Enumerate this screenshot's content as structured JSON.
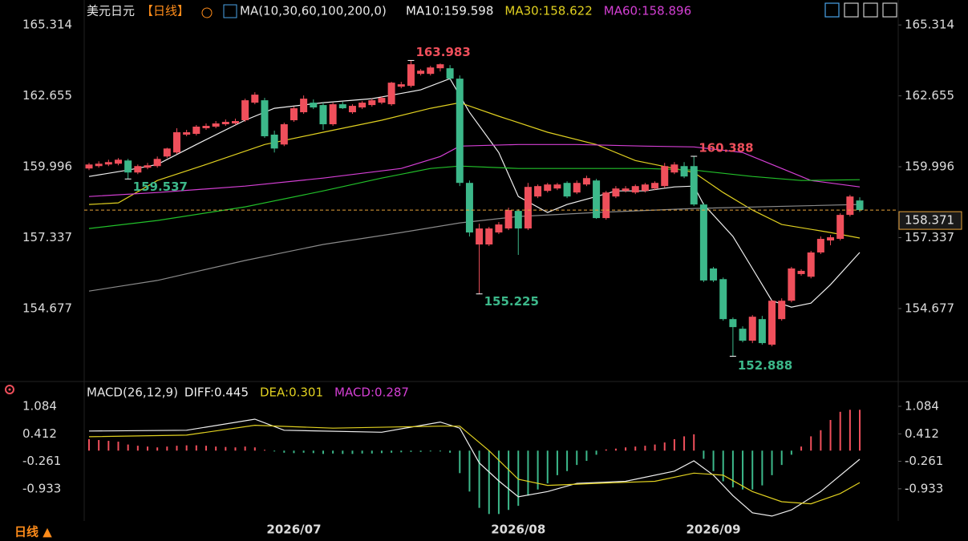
{
  "toolbar": {
    "period": "日线 ▲"
  },
  "chart_data": [
    {
      "type": "candlestick",
      "title": "美元日元",
      "subtitle": "【日线】",
      "indicator": "MA(10,30,60,100,200,0)",
      "up_color": "#ef4f5b",
      "down_color": "#3cb88a",
      "last_price_color": "#e8a33a",
      "ylim": [
        152.12,
        165.95
      ],
      "yticks": [
        165.314,
        162.655,
        159.996,
        157.337,
        154.677
      ],
      "categories": [
        null,
        null,
        null,
        null,
        null,
        null,
        null,
        null,
        null,
        null,
        null,
        null,
        null,
        null,
        null,
        null,
        null,
        null,
        null,
        null,
        null,
        "2026/07",
        null,
        null,
        null,
        null,
        null,
        null,
        null,
        null,
        null,
        null,
        null,
        null,
        null,
        null,
        null,
        null,
        null,
        null,
        null,
        null,
        null,
        null,
        "2026/08",
        null,
        null,
        null,
        null,
        null,
        null,
        null,
        null,
        null,
        null,
        null,
        null,
        null,
        null,
        null,
        null,
        null,
        null,
        null,
        "2026/09",
        null,
        null,
        null,
        null,
        null,
        null,
        null,
        null,
        null,
        null,
        null,
        null,
        null,
        null,
        null
      ],
      "open": [
        159.93,
        160.02,
        160.08,
        160.11,
        160.23,
        159.78,
        159.96,
        160.02,
        160.38,
        160.53,
        161.2,
        161.23,
        161.44,
        161.5,
        161.59,
        161.62,
        161.74,
        162.4,
        162.49,
        161.2,
        160.83,
        161.74,
        162.04,
        162.4,
        162.31,
        161.59,
        162.34,
        162.04,
        162.22,
        162.31,
        162.4,
        162.34,
        163.0,
        163.03,
        163.48,
        163.48,
        163.69,
        163.69,
        163.3,
        159.39,
        157.08,
        157.08,
        157.53,
        157.68,
        158.34,
        157.68,
        158.88,
        159.09,
        159.18,
        159.39,
        159.03,
        159.33,
        159.48,
        158.07,
        158.88,
        159.09,
        159.03,
        159.09,
        159.18,
        159.27,
        159.78,
        160.02,
        160.02,
        158.58,
        156.18,
        155.78,
        154.28,
        153.92,
        153.47,
        154.28,
        153.32,
        154.28,
        154.97,
        155.97,
        155.87,
        156.78,
        157.23,
        157.29,
        158.19,
        158.73
      ],
      "high": [
        160.14,
        160.2,
        160.26,
        160.32,
        160.29,
        160.08,
        160.14,
        160.38,
        160.71,
        161.44,
        161.38,
        161.56,
        161.62,
        161.71,
        161.77,
        161.8,
        162.55,
        162.79,
        162.58,
        161.35,
        161.65,
        162.25,
        162.67,
        162.52,
        162.4,
        162.4,
        162.43,
        162.34,
        162.46,
        162.55,
        162.64,
        163.18,
        163.18,
        163.983,
        163.66,
        163.78,
        163.87,
        163.81,
        163.42,
        159.48,
        157.86,
        157.74,
        157.92,
        158.46,
        158.4,
        159.39,
        159.33,
        159.39,
        159.39,
        159.45,
        159.48,
        159.66,
        159.54,
        159.09,
        159.27,
        159.27,
        159.33,
        159.39,
        159.45,
        160.14,
        160.17,
        160.17,
        160.388,
        158.64,
        156.24,
        155.84,
        154.34,
        154.01,
        154.43,
        154.4,
        155.0,
        155.06,
        156.24,
        156.15,
        156.84,
        157.38,
        157.44,
        158.25,
        158.94,
        158.85
      ],
      "low": [
        159.87,
        159.96,
        160.02,
        160.05,
        159.537,
        159.72,
        159.9,
        159.96,
        160.32,
        160.47,
        161.14,
        161.17,
        161.38,
        161.44,
        161.53,
        161.56,
        161.68,
        162.34,
        161.08,
        160.53,
        160.77,
        161.68,
        161.98,
        162.16,
        161.38,
        161.53,
        162.16,
        161.98,
        162.16,
        162.25,
        162.34,
        162.28,
        162.94,
        162.97,
        163.42,
        163.42,
        163.57,
        163.24,
        159.27,
        157.38,
        155.225,
        157.02,
        157.47,
        157.62,
        156.69,
        157.62,
        158.82,
        159.03,
        159.12,
        158.82,
        158.97,
        159.27,
        158.04,
        158.01,
        158.82,
        159.03,
        158.97,
        159.03,
        159.12,
        159.21,
        159.72,
        159.57,
        158.52,
        155.67,
        155.67,
        154.22,
        152.888,
        153.41,
        153.38,
        153.32,
        153.26,
        154.22,
        154.91,
        155.91,
        155.81,
        156.72,
        157.05,
        157.23,
        158.13,
        158.3
      ],
      "close": [
        160.08,
        160.11,
        160.17,
        160.26,
        159.78,
        160.02,
        160.05,
        160.29,
        160.68,
        161.29,
        161.29,
        161.5,
        161.53,
        161.62,
        161.68,
        161.71,
        162.49,
        162.7,
        161.14,
        160.68,
        161.59,
        162.19,
        162.55,
        162.22,
        161.59,
        162.34,
        162.19,
        162.28,
        162.4,
        162.49,
        162.58,
        163.15,
        163.09,
        163.84,
        163.6,
        163.72,
        163.84,
        163.3,
        159.39,
        157.53,
        157.68,
        157.68,
        157.83,
        158.37,
        157.68,
        159.24,
        159.27,
        159.33,
        159.33,
        158.88,
        159.39,
        159.57,
        158.07,
        159.03,
        159.18,
        159.18,
        159.27,
        159.33,
        159.39,
        160.02,
        160.08,
        159.63,
        158.58,
        155.73,
        155.73,
        154.28,
        153.98,
        153.47,
        154.37,
        153.38,
        154.97,
        154.97,
        156.18,
        156.09,
        156.78,
        157.29,
        157.35,
        158.19,
        158.88,
        158.371
      ],
      "series": [
        {
          "name": "MA10:159.598",
          "color": "#f0f0f0",
          "x": [
            0,
            4,
            7,
            11,
            16,
            19,
            24,
            29,
            34,
            37,
            39,
            42,
            44,
            47,
            49,
            52,
            54,
            57,
            60,
            62,
            63,
            66,
            68,
            70,
            72,
            74,
            76,
            79
          ],
          "values": [
            159.63,
            159.87,
            160.08,
            160.83,
            161.74,
            162.19,
            162.4,
            162.55,
            162.88,
            163.3,
            162.04,
            160.53,
            158.88,
            158.28,
            158.58,
            158.88,
            159.09,
            159.09,
            159.24,
            159.27,
            158.58,
            157.38,
            156.18,
            154.97,
            154.73,
            154.88,
            155.57,
            156.78
          ]
        },
        {
          "name": "MA30:158.622",
          "color": "#e0d020",
          "x": [
            0,
            3,
            7,
            12,
            18,
            24,
            30,
            35,
            38,
            42,
            47,
            52,
            56,
            62,
            65,
            68,
            71,
            76,
            79
          ],
          "values": [
            158.58,
            158.64,
            159.48,
            160.08,
            160.83,
            161.29,
            161.74,
            162.19,
            162.4,
            161.89,
            161.29,
            160.83,
            160.23,
            159.78,
            159.03,
            158.37,
            157.83,
            157.53,
            157.32
          ]
        },
        {
          "name": "MA60:158.896",
          "color": "#d43fd4",
          "x": [
            0,
            7,
            16,
            24,
            32,
            36,
            38,
            44,
            50,
            57,
            62,
            67,
            71,
            74,
            79
          ],
          "values": [
            158.88,
            159.03,
            159.27,
            159.57,
            159.93,
            160.38,
            160.77,
            160.83,
            160.83,
            160.77,
            160.74,
            160.53,
            159.93,
            159.48,
            159.24
          ]
        },
        {
          "color": "#22c02a",
          "x": [
            0,
            7,
            16,
            24,
            30,
            35,
            38,
            44,
            50,
            57,
            62,
            68,
            73,
            79
          ],
          "values": [
            157.68,
            157.98,
            158.49,
            159.09,
            159.57,
            159.93,
            160.02,
            159.93,
            159.93,
            159.93,
            159.87,
            159.63,
            159.48,
            159.51
          ]
        },
        {
          "color": "#8a8a8a",
          "x": [
            0,
            7,
            16,
            24,
            32,
            38,
            44,
            52,
            62,
            79
          ],
          "values": [
            155.33,
            155.73,
            156.48,
            157.08,
            157.53,
            157.89,
            158.13,
            158.28,
            158.43,
            158.58
          ]
        }
      ]
    },
    {
      "type": "macd",
      "title": "MACD(26,12,9)",
      "ylim": [
        -1.72,
        1.26
      ],
      "yticks": [
        1.084,
        0.412,
        -0.261,
        -0.933
      ],
      "up_color": "#ef4f5b",
      "down_color": "#3cb88a",
      "series": [
        {
          "name": "DIFF:0.445",
          "color": "#f0f0f0",
          "type": "line",
          "x": [
            0,
            10,
            17,
            20,
            30,
            36,
            38,
            40,
            42,
            44,
            47,
            50,
            55,
            60,
            62,
            64,
            66,
            68,
            70,
            72,
            75,
            79
          ],
          "values": [
            0.48,
            0.5,
            0.77,
            0.5,
            0.45,
            0.7,
            0.55,
            -0.3,
            -0.74,
            -1.13,
            -1.0,
            -0.8,
            -0.75,
            -0.5,
            -0.25,
            -0.6,
            -1.1,
            -1.52,
            -1.6,
            -1.45,
            -1.0,
            -0.21
          ]
        },
        {
          "name": "DEA:0.301",
          "color": "#e0d020",
          "type": "line",
          "x": [
            0,
            10,
            17,
            25,
            36,
            38,
            41,
            44,
            47,
            52,
            58,
            62,
            65,
            68,
            71,
            74,
            77,
            79
          ],
          "values": [
            0.34,
            0.38,
            0.62,
            0.55,
            0.6,
            0.6,
            0.0,
            -0.7,
            -0.85,
            -0.8,
            -0.75,
            -0.55,
            -0.6,
            -1.0,
            -1.25,
            -1.3,
            -1.05,
            -0.78
          ]
        },
        {
          "name": "MACD:0.287",
          "color": "#d43fd4",
          "type": "bar",
          "values": [
            0.28,
            0.26,
            0.24,
            0.22,
            0.15,
            0.12,
            0.1,
            0.08,
            0.1,
            0.12,
            0.13,
            0.13,
            0.12,
            0.1,
            0.09,
            0.08,
            0.1,
            0.08,
            0.02,
            -0.02,
            -0.05,
            -0.06,
            -0.05,
            -0.06,
            -0.08,
            -0.07,
            -0.08,
            -0.08,
            -0.07,
            -0.07,
            -0.06,
            -0.05,
            -0.04,
            -0.03,
            -0.03,
            -0.02,
            -0.02,
            -0.05,
            -0.55,
            -1.0,
            -1.4,
            -1.55,
            -1.55,
            -1.45,
            -1.35,
            -1.1,
            -0.95,
            -0.8,
            -0.6,
            -0.5,
            -0.35,
            -0.25,
            -0.1,
            0.03,
            0.05,
            0.08,
            0.1,
            0.12,
            0.15,
            0.2,
            0.28,
            0.35,
            0.4,
            -0.2,
            -0.5,
            -0.75,
            -0.9,
            -0.95,
            -0.95,
            -0.85,
            -0.6,
            -0.35,
            -0.1,
            0.1,
            0.35,
            0.5,
            0.75,
            0.95,
            1.0,
            1.0
          ]
        }
      ]
    }
  ]
}
